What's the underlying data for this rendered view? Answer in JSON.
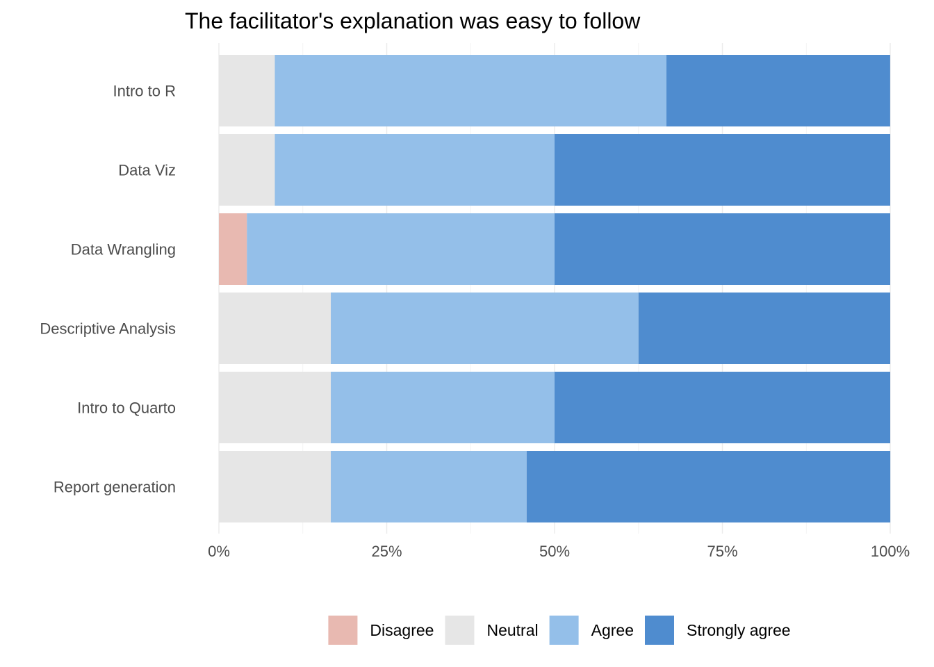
{
  "chart_data": {
    "type": "bar",
    "orientation": "horizontal",
    "stacked": true,
    "title": "The facilitator's explanation was easy to follow",
    "xlabel": "",
    "ylabel": "",
    "categories": [
      "Intro to R",
      "Data Viz",
      "Data Wrangling",
      "Descriptive Analysis",
      "Intro to Quarto",
      "Report generation"
    ],
    "series": [
      {
        "name": "Disagree",
        "color": "#e8b9b1",
        "values": [
          0,
          0,
          0.0417,
          0,
          0,
          0
        ]
      },
      {
        "name": "Neutral",
        "color": "#e6e6e6",
        "values": [
          0.0833,
          0.0833,
          0,
          0.1667,
          0.1667,
          0.1667
        ]
      },
      {
        "name": "Agree",
        "color": "#94bfe9",
        "values": [
          0.5833,
          0.4167,
          0.4583,
          0.4583,
          0.3333,
          0.2917
        ]
      },
      {
        "name": "Strongly agree",
        "color": "#4f8ccf",
        "values": [
          0.3333,
          0.5,
          0.5,
          0.375,
          0.5,
          0.5417
        ]
      }
    ],
    "xlim": [
      0,
      1
    ],
    "x_ticks": [
      0,
      0.25,
      0.5,
      0.75,
      1
    ],
    "x_tick_labels": [
      "0%",
      "25%",
      "50%",
      "75%",
      "100%"
    ],
    "grid": true,
    "legend_position": "bottom"
  }
}
